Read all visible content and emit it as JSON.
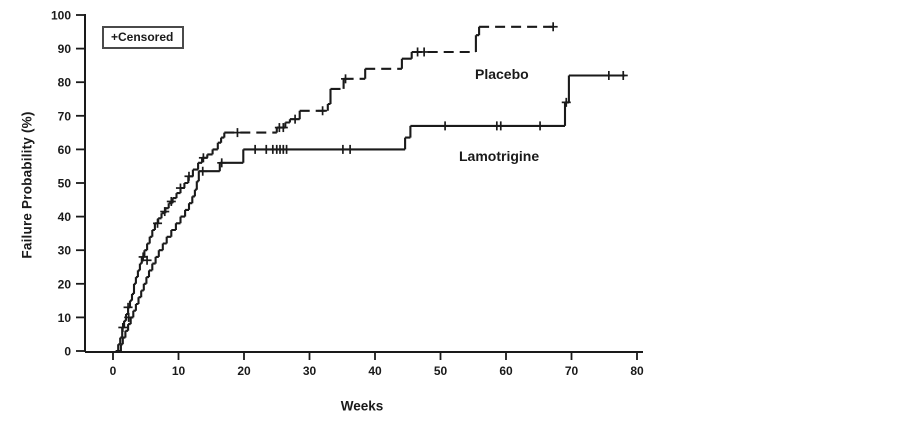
{
  "figure": {
    "background": "#ffffff",
    "ink_color": "#1a1a1a"
  },
  "legend": {
    "label": "+Censored",
    "censor_symbol": "+"
  },
  "chart_data": {
    "type": "line",
    "subtype": "kaplan-meier-step",
    "title": "",
    "xlabel": "Weeks",
    "ylabel": "Failure Probability (%)",
    "xlim": [
      0,
      80
    ],
    "ylim": [
      0,
      100
    ],
    "xticks": [
      0,
      10,
      20,
      30,
      40,
      50,
      60,
      70,
      80
    ],
    "yticks": [
      0,
      10,
      20,
      30,
      40,
      50,
      60,
      70,
      80,
      90,
      100
    ],
    "grid": false,
    "legend_position": "top-left-inside",
    "series": [
      {
        "name": "Placebo",
        "style": "dashed",
        "points": [
          [
            0.4,
            0
          ],
          [
            0.8,
            2
          ],
          [
            1.1,
            4
          ],
          [
            1.4,
            7
          ],
          [
            1.7,
            9
          ],
          [
            2.0,
            11
          ],
          [
            2.3,
            13
          ],
          [
            2.6,
            15
          ],
          [
            2.9,
            17
          ],
          [
            3.2,
            20
          ],
          [
            3.5,
            22
          ],
          [
            3.8,
            24
          ],
          [
            4.1,
            26
          ],
          [
            4.4,
            28
          ],
          [
            4.8,
            30
          ],
          [
            5.2,
            32
          ],
          [
            5.6,
            34
          ],
          [
            6.0,
            36
          ],
          [
            6.4,
            38
          ],
          [
            6.9,
            39.5
          ],
          [
            7.4,
            41
          ],
          [
            8.0,
            42.5
          ],
          [
            8.5,
            44
          ],
          [
            9.1,
            45.5
          ],
          [
            9.7,
            47
          ],
          [
            10.3,
            48.5
          ],
          [
            10.9,
            50
          ],
          [
            11.5,
            52
          ],
          [
            12.2,
            54
          ],
          [
            13.0,
            56
          ],
          [
            13.6,
            57.5
          ],
          [
            14.4,
            58.5
          ],
          [
            15.2,
            60
          ],
          [
            16.0,
            62
          ],
          [
            16.5,
            63.5
          ],
          [
            17.0,
            65
          ],
          [
            25.0,
            66.5
          ],
          [
            26.3,
            68
          ],
          [
            27.0,
            69
          ],
          [
            28.5,
            71.5
          ],
          [
            32.8,
            73.5
          ],
          [
            33.2,
            78
          ],
          [
            35.2,
            81
          ],
          [
            38.5,
            84
          ],
          [
            44.1,
            87
          ],
          [
            45.6,
            89
          ],
          [
            55.4,
            94
          ],
          [
            55.9,
            96.5
          ],
          [
            68.0,
            96.5
          ]
        ],
        "censored": [
          [
            1.5,
            7
          ],
          [
            2.3,
            13
          ],
          [
            4.6,
            28
          ],
          [
            6.8,
            38
          ],
          [
            7.9,
            41.5
          ],
          [
            8.9,
            44.5
          ],
          [
            10.3,
            48.5
          ],
          [
            11.6,
            52
          ],
          [
            13.8,
            57.5
          ],
          [
            19.0,
            65
          ],
          [
            25.4,
            66.5
          ],
          [
            26.0,
            66.5
          ],
          [
            27.8,
            69
          ],
          [
            32.0,
            71.5
          ],
          [
            35.5,
            81
          ],
          [
            46.5,
            89
          ],
          [
            47.5,
            89
          ],
          [
            67.2,
            96.5
          ]
        ]
      },
      {
        "name": "Lamotrigine",
        "style": "solid",
        "points": [
          [
            0.8,
            0
          ],
          [
            1.2,
            2
          ],
          [
            1.5,
            4
          ],
          [
            1.9,
            6
          ],
          [
            2.3,
            8
          ],
          [
            2.7,
            10
          ],
          [
            3.1,
            12
          ],
          [
            3.5,
            14
          ],
          [
            3.9,
            16
          ],
          [
            4.3,
            18
          ],
          [
            4.7,
            20
          ],
          [
            5.1,
            22
          ],
          [
            5.5,
            24
          ],
          [
            6.0,
            26
          ],
          [
            6.5,
            28
          ],
          [
            7.0,
            30
          ],
          [
            7.6,
            32
          ],
          [
            8.2,
            34
          ],
          [
            8.9,
            36
          ],
          [
            9.6,
            38
          ],
          [
            10.3,
            40
          ],
          [
            11.0,
            42
          ],
          [
            11.6,
            44
          ],
          [
            12.1,
            46
          ],
          [
            12.5,
            48
          ],
          [
            12.8,
            50.5
          ],
          [
            13.1,
            53.5
          ],
          [
            16.3,
            56
          ],
          [
            19.9,
            60
          ],
          [
            44.6,
            63.5
          ],
          [
            45.4,
            67
          ],
          [
            69.0,
            74
          ],
          [
            69.6,
            82
          ],
          [
            78.2,
            82
          ]
        ],
        "censored": [
          [
            2.4,
            10
          ],
          [
            5.2,
            27
          ],
          [
            13.7,
            53.5
          ],
          [
            16.6,
            56
          ],
          [
            21.7,
            60
          ],
          [
            23.4,
            60
          ],
          [
            24.4,
            60
          ],
          [
            25.0,
            60
          ],
          [
            25.5,
            60
          ],
          [
            26.0,
            60
          ],
          [
            26.5,
            60
          ],
          [
            35.1,
            60
          ],
          [
            36.2,
            60
          ],
          [
            50.7,
            67
          ],
          [
            58.6,
            67
          ],
          [
            59.2,
            67
          ],
          [
            65.2,
            67
          ],
          [
            69.2,
            74
          ],
          [
            75.7,
            82
          ],
          [
            77.9,
            82
          ]
        ]
      }
    ]
  }
}
